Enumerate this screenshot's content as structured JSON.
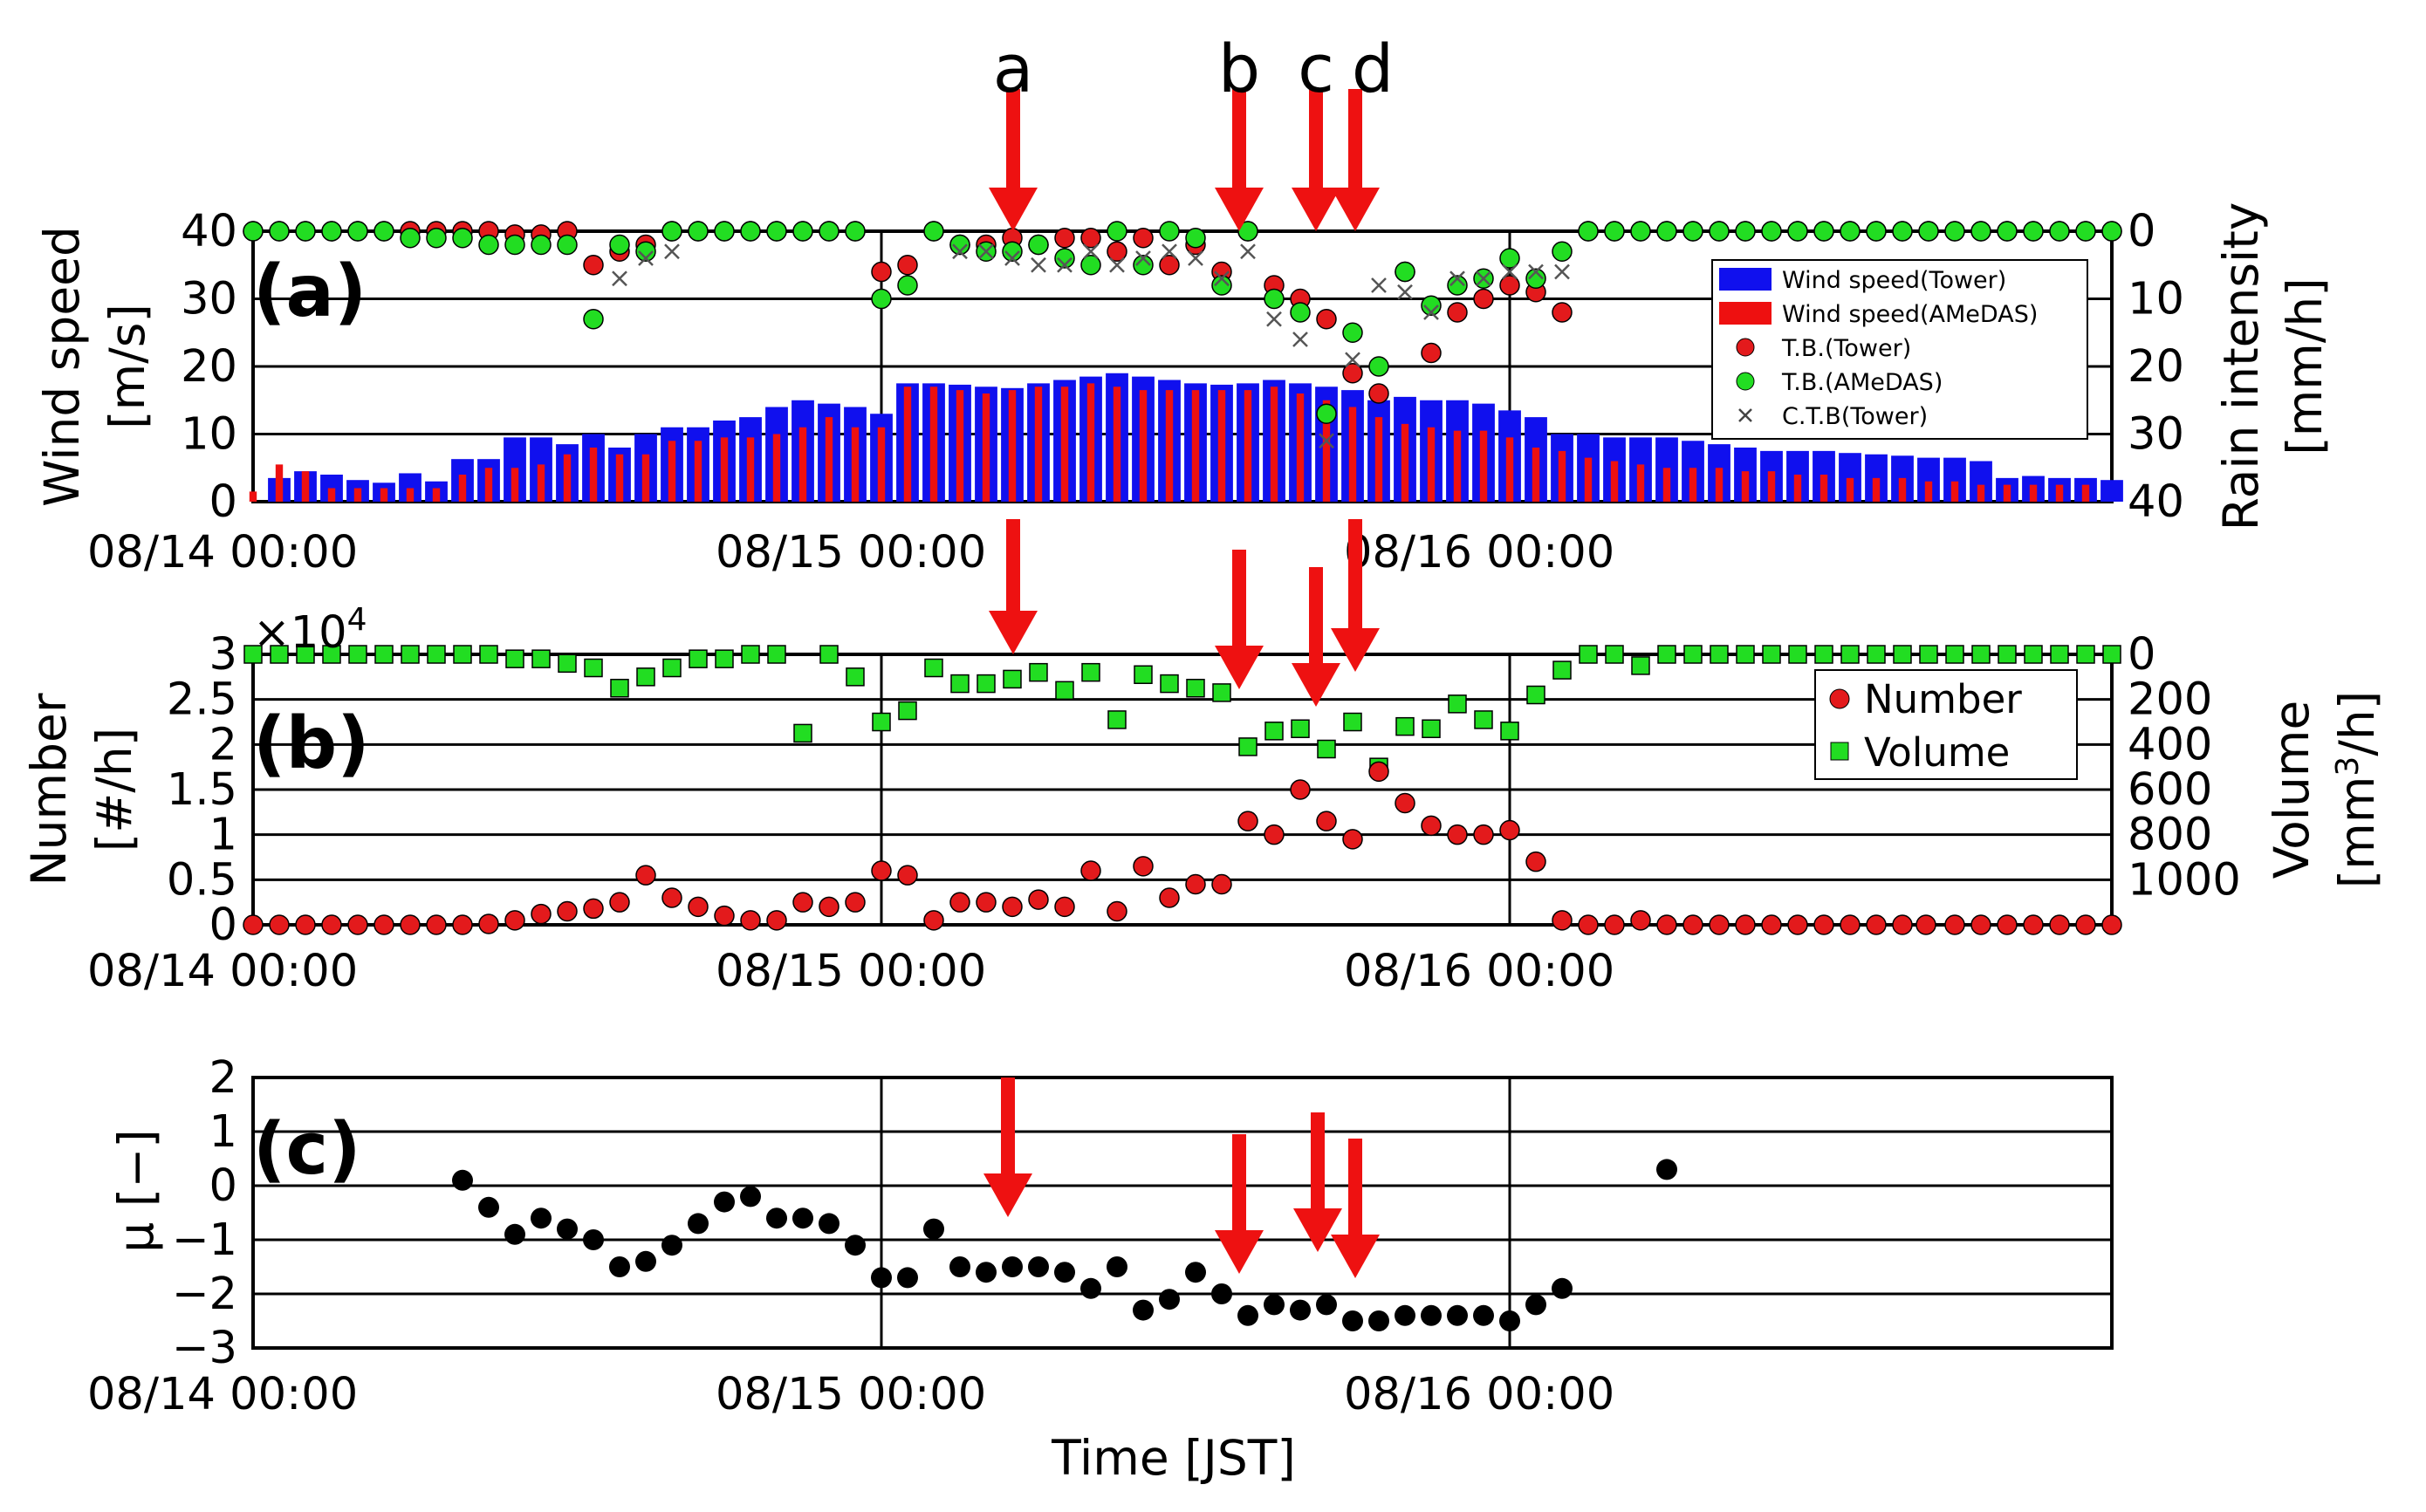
{
  "figure": {
    "markers": [
      "a",
      "b",
      "c",
      "d"
    ],
    "x_axis": {
      "ticks": [
        "08/14 00:00",
        "08/15 00:00",
        "08/16 00:00"
      ],
      "label": "Time [JST]"
    }
  },
  "colors": {
    "tower_bar": "#1010ee",
    "amedas_bar": "#ee1010",
    "red_marker": "#e31a1c",
    "green_marker": "#22dd22",
    "arrow": "#ee1111",
    "black": "#000000"
  },
  "chart_data": [
    {
      "type": "bar",
      "panel_label": "(a)",
      "x_range": [
        0,
        71
      ],
      "x_ticks": [
        0,
        24,
        48
      ],
      "ylabel": [
        "Wind speed",
        "[m/s]"
      ],
      "ylim": [
        0,
        40
      ],
      "y_ticks": [
        0,
        10,
        20,
        30,
        40
      ],
      "y2label": [
        "Rain intensity",
        "[mm/h]"
      ],
      "y2lim": [
        0,
        40
      ],
      "y2_inverted": true,
      "y2_ticks": [
        0,
        10,
        20,
        30,
        40
      ],
      "grid": true,
      "legend_position": "right",
      "legend": [
        "Wind speed(Tower)",
        "Wind speed(AMeDAS)",
        "T.B.(Tower)",
        "T.B.(AMeDAS)",
        "C.T.B(Tower)"
      ],
      "series": [
        {
          "name": "Wind speed(Tower)",
          "type": "bar",
          "x": [
            1,
            2,
            3,
            4,
            5,
            6,
            7,
            8,
            9,
            10,
            11,
            12,
            13,
            14,
            15,
            16,
            17,
            18,
            19,
            20,
            21,
            22,
            23,
            24,
            25,
            26,
            27,
            28,
            29,
            30,
            31,
            32,
            33,
            34,
            35,
            36,
            37,
            38,
            39,
            40,
            41,
            42,
            43,
            44,
            45,
            46,
            47,
            48,
            49,
            50,
            51,
            52,
            53,
            54,
            55,
            56,
            57,
            58,
            59,
            60,
            61,
            62,
            63,
            64,
            65,
            66,
            67,
            68,
            69,
            70,
            71
          ],
          "values": [
            3.5,
            4.5,
            4.0,
            3.2,
            2.8,
            4.2,
            3.0,
            6.3,
            6.3,
            9.5,
            9.5,
            8.5,
            10.0,
            8.0,
            10.0,
            11.0,
            11.0,
            12.0,
            12.5,
            14.0,
            15.0,
            14.5,
            14.0,
            13.0,
            17.5,
            17.5,
            17.3,
            17.0,
            16.8,
            17.5,
            18.0,
            18.5,
            19.0,
            18.5,
            18.0,
            17.5,
            17.3,
            17.5,
            18.0,
            17.5,
            17.0,
            16.5,
            15.0,
            15.5,
            15.0,
            15.0,
            14.5,
            13.5,
            12.5,
            10.0,
            10.0,
            9.5,
            9.5,
            9.5,
            9.0,
            8.5,
            8.0,
            7.5,
            7.5,
            7.5,
            7.2,
            7.0,
            6.8,
            6.5,
            6.5,
            6.0,
            3.5,
            3.8,
            3.5,
            3.5,
            3.2
          ]
        },
        {
          "name": "Wind speed(AMeDAS)",
          "type": "bar",
          "x": [
            0,
            1,
            2,
            3,
            4,
            5,
            6,
            7,
            8,
            9,
            10,
            11,
            12,
            13,
            14,
            15,
            16,
            17,
            18,
            19,
            20,
            21,
            22,
            23,
            24,
            25,
            26,
            27,
            28,
            29,
            30,
            31,
            32,
            33,
            34,
            35,
            36,
            37,
            38,
            39,
            40,
            41,
            42,
            43,
            44,
            45,
            46,
            47,
            48,
            49,
            50,
            51,
            52,
            53,
            54,
            55,
            56,
            57,
            58,
            59,
            60,
            61,
            62,
            63,
            64,
            65,
            66,
            67,
            68,
            69,
            70
          ],
          "values": [
            1.5,
            5.5,
            4.5,
            2.0,
            2.0,
            2.0,
            2.0,
            2.0,
            4.0,
            5.0,
            5.0,
            5.5,
            7.0,
            8.0,
            7.0,
            7.0,
            9.0,
            9.0,
            9.5,
            9.5,
            10.0,
            11.0,
            12.5,
            11.0,
            11.0,
            17.0,
            17.0,
            16.5,
            16.0,
            16.5,
            17.0,
            17.0,
            17.5,
            17.0,
            16.5,
            16.5,
            16.5,
            16.5,
            16.5,
            17.0,
            16.0,
            15.0,
            14.0,
            12.5,
            11.5,
            11.0,
            10.5,
            10.5,
            9.5,
            8.0,
            7.5,
            6.5,
            6.0,
            5.5,
            5.0,
            5.0,
            5.0,
            4.5,
            4.5,
            4.0,
            4.0,
            3.5,
            3.5,
            3.5,
            3.0,
            3.0,
            2.5,
            2.5,
            2.5,
            2.5,
            2.5
          ]
        },
        {
          "name": "T.B.(Tower)",
          "type": "scatter",
          "axis": "y2",
          "x": [
            0,
            1,
            2,
            3,
            4,
            5,
            6,
            7,
            8,
            9,
            10,
            11,
            12,
            13,
            14,
            15,
            16,
            17,
            18,
            19,
            20,
            21,
            22,
            23,
            24,
            25,
            26,
            27,
            28,
            29,
            30,
            31,
            32,
            33,
            34,
            35,
            36,
            37,
            38,
            39,
            40,
            41,
            42,
            43,
            44,
            45,
            46,
            47,
            48,
            49,
            50,
            51,
            52,
            53,
            54,
            55,
            56,
            57,
            58,
            59,
            60,
            61,
            62,
            63,
            64,
            65,
            66,
            67,
            68,
            69,
            70,
            71
          ],
          "values": [
            0,
            0,
            0,
            0,
            0,
            0,
            0,
            0,
            0,
            0,
            0.5,
            0.5,
            0,
            5,
            3,
            2,
            0,
            0,
            0,
            0,
            0,
            0,
            0,
            0,
            6,
            5,
            0,
            2,
            2,
            1,
            2,
            1,
            1,
            3,
            1,
            5,
            2,
            6,
            0,
            8,
            10,
            13,
            21,
            24,
            6,
            18,
            12,
            10,
            8,
            9,
            12,
            0,
            0,
            0,
            0,
            0,
            0,
            0,
            0,
            0,
            0,
            0,
            0,
            0,
            0,
            0,
            0,
            0,
            0,
            0,
            0,
            0
          ]
        },
        {
          "name": "T.B.(AMeDAS)",
          "type": "scatter",
          "axis": "y2",
          "x": [
            0,
            1,
            2,
            3,
            4,
            5,
            6,
            7,
            8,
            9,
            10,
            11,
            12,
            13,
            14,
            15,
            16,
            17,
            18,
            19,
            20,
            21,
            22,
            23,
            24,
            25,
            26,
            27,
            28,
            29,
            30,
            31,
            32,
            33,
            34,
            35,
            36,
            37,
            38,
            39,
            40,
            41,
            42,
            43,
            44,
            45,
            46,
            47,
            48,
            49,
            50,
            51,
            52,
            53,
            54,
            55,
            56,
            57,
            58,
            59,
            60,
            61,
            62,
            63,
            64,
            65,
            66,
            67,
            68,
            69,
            70,
            71
          ],
          "values": [
            0,
            0,
            0,
            0,
            0,
            0,
            1,
            1,
            1,
            2,
            2,
            2,
            2,
            13,
            2,
            3,
            0,
            0,
            0,
            0,
            0,
            0,
            0,
            0,
            10,
            8,
            0,
            2,
            3,
            3,
            2,
            4,
            5,
            0,
            5,
            0,
            1,
            8,
            0,
            10,
            12,
            27,
            15,
            20,
            6,
            11,
            8,
            7,
            4,
            7,
            3,
            0,
            0,
            0,
            0,
            0,
            0,
            0,
            0,
            0,
            0,
            0,
            0,
            0,
            0,
            0,
            0,
            0,
            0,
            0,
            0,
            0
          ]
        },
        {
          "name": "C.T.B(Tower)",
          "type": "scatter",
          "axis": "y2",
          "x": [
            14,
            15,
            16,
            27,
            28,
            29,
            30,
            31,
            32,
            33,
            34,
            35,
            36,
            37,
            38,
            39,
            40,
            41,
            42,
            43,
            44,
            45,
            46,
            47,
            48,
            49,
            50
          ],
          "values": [
            7,
            4,
            3,
            3,
            3,
            4,
            5,
            5,
            3,
            5,
            4,
            3,
            4,
            7,
            3,
            13,
            16,
            31,
            19,
            8,
            9,
            12,
            7,
            7,
            6,
            6,
            6
          ]
        }
      ]
    },
    {
      "type": "scatter",
      "panel_label": "(b)",
      "x_range": [
        0,
        71
      ],
      "x_ticks": [
        0,
        24,
        48
      ],
      "ylabel": [
        "Number",
        "[#/h]"
      ],
      "ylim": [
        0,
        30000
      ],
      "y_ticks": [
        "0",
        "0.5",
        "1",
        "1.5",
        "2",
        "2.5",
        "3"
      ],
      "y_multiplier": "×10",
      "y_multiplier_exponent": "4",
      "y2label": [
        "Volume",
        "[mm",
        "3",
        "/h]"
      ],
      "y2lim": [
        0,
        1200
      ],
      "y2_inverted": true,
      "y2_ticks": [
        "0",
        "200",
        "400",
        "600",
        "800",
        "1000"
      ],
      "grid": true,
      "legend_position": "right",
      "legend": [
        "Number",
        "Volume"
      ],
      "series": [
        {
          "name": "Number",
          "x": [
            0,
            1,
            2,
            3,
            4,
            5,
            6,
            7,
            8,
            9,
            10,
            11,
            12,
            13,
            14,
            15,
            16,
            17,
            18,
            19,
            20,
            21,
            22,
            23,
            24,
            25,
            26,
            27,
            28,
            29,
            30,
            31,
            32,
            33,
            34,
            35,
            36,
            37,
            38,
            39,
            40,
            41,
            42,
            43,
            44,
            45,
            46,
            47,
            48,
            49,
            50,
            51,
            52,
            53,
            54,
            55,
            56,
            57,
            58,
            59,
            60,
            61,
            62,
            63,
            63.9,
            65,
            66,
            67,
            68,
            69,
            70,
            71
          ],
          "values": [
            0,
            0,
            0,
            0,
            0,
            0,
            0,
            0,
            0,
            100,
            500,
            1200,
            1500,
            1800,
            2500,
            5500,
            3000,
            2000,
            1000,
            500,
            500,
            2500,
            2000,
            2500,
            6000,
            5500,
            500,
            2500,
            2500,
            2000,
            2800,
            2000,
            6000,
            1500,
            6500,
            3000,
            4500,
            4500,
            11500,
            10000,
            15000,
            11500,
            9500,
            17000,
            13500,
            11000,
            10000,
            10000,
            10500,
            7000,
            500,
            0,
            0,
            500,
            0,
            0,
            0,
            0,
            0,
            0,
            0,
            0,
            0,
            0,
            0,
            0,
            0,
            0,
            0,
            0,
            0,
            0
          ]
        },
        {
          "name": "Volume",
          "axis": "y2",
          "x": [
            0,
            1,
            2,
            3,
            4,
            5,
            6,
            7,
            8,
            9,
            10,
            11,
            12,
            13,
            14,
            15,
            16,
            17,
            18,
            19,
            20,
            21,
            22,
            23,
            24,
            25,
            26,
            27,
            28,
            29,
            30,
            31,
            32,
            33,
            34,
            35,
            36,
            37,
            38,
            39,
            40,
            41,
            42,
            43,
            44,
            45,
            46,
            47,
            48,
            49,
            50,
            51,
            52,
            53,
            54,
            55,
            56,
            57,
            58,
            59,
            60,
            61,
            62,
            63,
            64,
            65,
            66,
            67,
            68,
            69,
            70,
            71
          ],
          "values": [
            0,
            0,
            0,
            0,
            0,
            0,
            0,
            0,
            0,
            0,
            20,
            20,
            40,
            60,
            150,
            100,
            60,
            20,
            20,
            0,
            0,
            350,
            0,
            100,
            300,
            250,
            60,
            130,
            130,
            110,
            80,
            160,
            80,
            290,
            90,
            130,
            150,
            170,
            410,
            340,
            330,
            420,
            300,
            500,
            320,
            330,
            220,
            290,
            340,
            180,
            70,
            0,
            0,
            50,
            0,
            0,
            0,
            0,
            0,
            0,
            0,
            0,
            0,
            0,
            0,
            0,
            0,
            0,
            0,
            0,
            0,
            0
          ]
        }
      ]
    },
    {
      "type": "scatter",
      "panel_label": "(c)",
      "x_range": [
        0,
        71
      ],
      "x_ticks": [
        0,
        24,
        48
      ],
      "ylabel": [
        "μ [−]"
      ],
      "ylim": [
        -3,
        2
      ],
      "y_ticks": [
        "−3",
        "−2",
        "−1",
        "0",
        "1",
        "2"
      ],
      "grid": true,
      "series": [
        {
          "name": "μ",
          "x": [
            8,
            9,
            10,
            11,
            12,
            13,
            14,
            15,
            16,
            17,
            18,
            19,
            20,
            21,
            22,
            23,
            24,
            25,
            26,
            27,
            28,
            29,
            30,
            31,
            32,
            33,
            34,
            35,
            36,
            37,
            38,
            39,
            40,
            41,
            42,
            43,
            44,
            45,
            46,
            47,
            48,
            49,
            50,
            54
          ],
          "values": [
            0.1,
            -0.4,
            -0.9,
            -0.6,
            -0.8,
            -1.0,
            -1.5,
            -1.4,
            -1.1,
            -0.7,
            -0.3,
            -0.2,
            -0.6,
            -0.6,
            -0.7,
            -1.1,
            -1.7,
            -1.7,
            -0.8,
            -1.5,
            -1.6,
            -1.5,
            -1.5,
            -1.6,
            -1.9,
            -1.5,
            -2.3,
            -2.1,
            -1.6,
            -2.0,
            -2.4,
            -2.2,
            -2.3,
            -2.2,
            -2.5,
            -2.5,
            -2.4,
            -2.4,
            -2.4,
            -2.4,
            -2.5,
            -2.2,
            -1.9,
            0.3
          ]
        }
      ]
    }
  ]
}
